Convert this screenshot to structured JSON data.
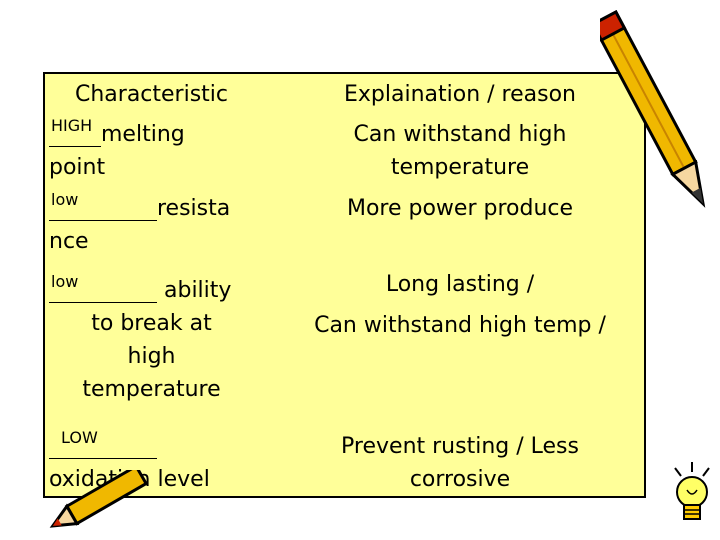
{
  "header": {
    "left": "Characteristic",
    "right": "Explaination / reason"
  },
  "rows": [
    {
      "fill": "HIGH",
      "before": "",
      "after": "melting",
      "cont": "point",
      "right1": "Can withstand high",
      "right2": "temperature"
    },
    {
      "fill": "low",
      "after": "resista",
      "cont": "nce",
      "right1": "More power produce"
    },
    {
      "fill": "low",
      "after": " ability",
      "l2": "to break at",
      "l3": "high",
      "l4": "temperature",
      "right1": "Long lasting /",
      "right2": "Can withstand high temp /"
    },
    {
      "fill": "LOW",
      "cont": "oxidation level",
      "right1": "Prevent rusting / Less",
      "right2": "corrosive"
    }
  ],
  "decorations": {
    "top_right": "pencil-icon",
    "bottom_right": "lightbulb-icon",
    "bottom_left": "pencil-icon"
  },
  "colors": {
    "table_bg": "#ffff99",
    "pencil_body": "#f0b800",
    "pencil_tip": "#cc2200"
  }
}
